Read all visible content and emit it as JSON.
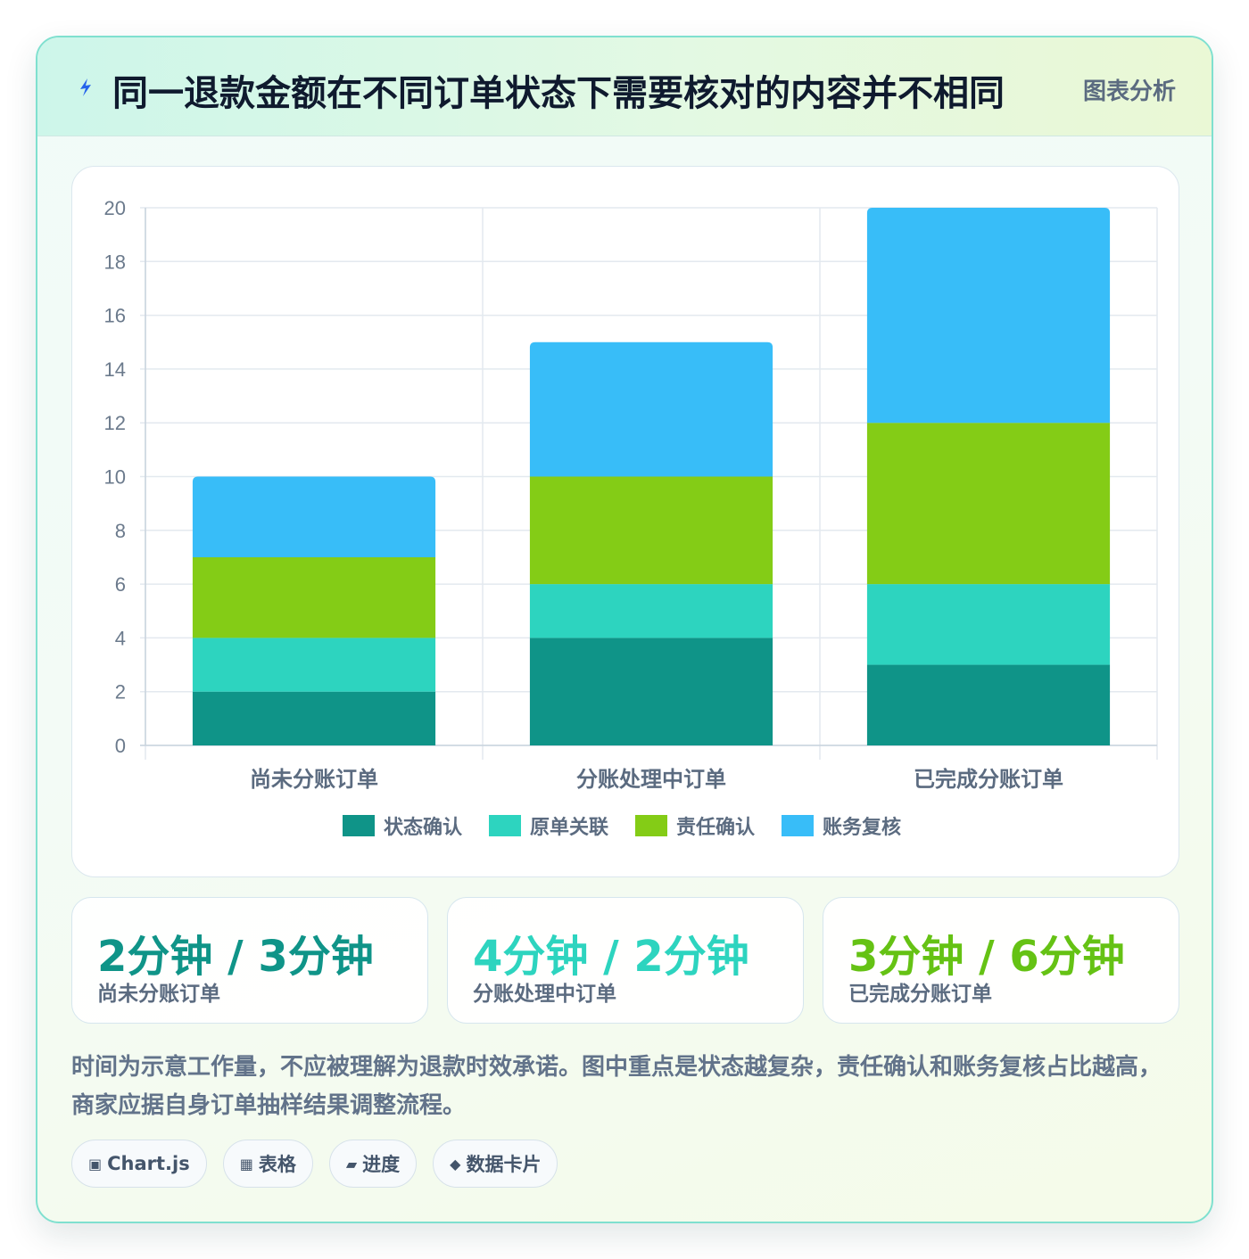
{
  "header": {
    "title": "同一退款金额在不同订单状态下需要核对的内容并不相同",
    "badge": "图表分析",
    "icon": "lightning-icon"
  },
  "chart_data": {
    "type": "bar",
    "stacked": true,
    "categories": [
      "尚未分账订单",
      "分账处理中订单",
      "已完成分账订单"
    ],
    "series": [
      {
        "name": "状态确认",
        "color": "#0f9488",
        "values": [
          2,
          4,
          3
        ]
      },
      {
        "name": "原单关联",
        "color": "#2dd4bf",
        "values": [
          2,
          2,
          3
        ]
      },
      {
        "name": "责任确认",
        "color": "#84cc16",
        "values": [
          3,
          4,
          6
        ]
      },
      {
        "name": "账务复核",
        "color": "#38bdf8",
        "values": [
          3,
          5,
          8
        ]
      }
    ],
    "ylim": [
      0,
      20
    ],
    "yticks": [
      0,
      2,
      4,
      6,
      8,
      10,
      12,
      14,
      16,
      18,
      20
    ],
    "grid": true,
    "legend": "bottom"
  },
  "stats": [
    {
      "value": "2分钟 / 3分钟",
      "label": "尚未分账订单",
      "color": "#0f9488"
    },
    {
      "value": "4分钟 / 2分钟",
      "label": "分账处理中订单",
      "color": "#2dd4bf"
    },
    {
      "value": "3分钟 / 6分钟",
      "label": "已完成分账订单",
      "color": "#65c214"
    }
  ],
  "note": "时间为示意工作量，不应被理解为退款时效承诺。图中重点是状态越复杂，责任确认和账务复核占比越高，商家应据自身订单抽样结果调整流程。",
  "chips": [
    {
      "icon": "▣",
      "icon_name": "chart-icon",
      "label": "Chart.js"
    },
    {
      "icon": "▦",
      "icon_name": "table-icon",
      "label": "表格"
    },
    {
      "icon": "▰",
      "icon_name": "progress-icon",
      "label": "进度"
    },
    {
      "icon": "◆",
      "icon_name": "data-card-icon",
      "label": "数据卡片"
    }
  ]
}
